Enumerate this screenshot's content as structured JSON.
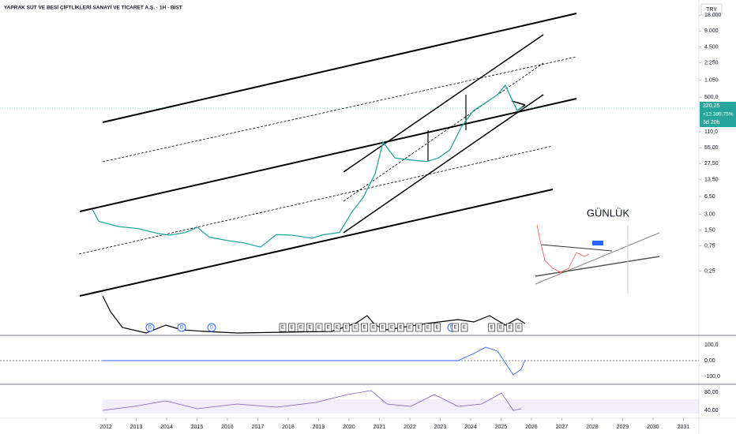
{
  "chart_data": {
    "type": "line",
    "title": "YAPRAK SÜT VE BESİ ÇİFTLİKLERİ SANAYİ VE TİCARET A.Ş. · 1H · BIST",
    "currency": "TRY",
    "annotation": "GÜNLÜK",
    "last_price_label": "320,25",
    "change_label": "+12.389,75%",
    "countdown_label": "3d 20h",
    "dividend_marker": "D",
    "earnings_marker": "E",
    "oscillator_ticks": [
      "100,0",
      "0,00",
      "-100,0"
    ],
    "rsi_ticks": [
      "80,00",
      "40,00"
    ],
    "log_scale": true,
    "series": [
      {
        "name": "YAPRAK",
        "color": "#26a69a",
        "x": [
          2011.56,
          2011.77,
          2012.42,
          2013.06,
          2013.71,
          2014.1,
          2014.62,
          2015.01,
          2015.4,
          2016.05,
          2016.57,
          2017.09,
          2017.61,
          2018.13,
          2018.78,
          2019.17,
          2019.69,
          2020.08,
          2020.47,
          2020.86,
          2021.12,
          2021.51,
          2022.03,
          2022.55,
          2022.94,
          2023.32,
          2023.71,
          2024.1,
          2024.49,
          2024.88,
          2025.14,
          2025.35,
          2025.53,
          2025.71
        ],
        "values": [
          3.7,
          2.2,
          1.75,
          1.6,
          1.29,
          1.2,
          1.35,
          1.7,
          1.1,
          0.94,
          0.85,
          0.71,
          1.23,
          1.2,
          1.05,
          1.23,
          1.35,
          3.2,
          6.3,
          17.6,
          70,
          35,
          32,
          30,
          35,
          50,
          140,
          280,
          390,
          555,
          840,
          465,
          280,
          330
        ]
      }
    ],
    "xlim": [
      2008.52,
      2031.51
    ],
    "xticks": [
      2012,
      2013,
      2014,
      2015,
      2016,
      2017,
      2018,
      2019,
      2020,
      2021,
      2022,
      2023,
      2024,
      2025,
      2026,
      2027,
      2028,
      2029,
      2030,
      2031
    ],
    "ylim": [
      0.015,
      35000
    ],
    "yticks": [
      {
        "value": 18000,
        "label": "18.000"
      },
      {
        "value": 9000,
        "label": "9.000"
      },
      {
        "value": 4500,
        "label": "4.500"
      },
      {
        "value": 2250,
        "label": "2.250"
      },
      {
        "value": 1050,
        "label": "1.050"
      },
      {
        "value": 500,
        "label": "500,0"
      },
      {
        "value": 110,
        "label": "110,0"
      },
      {
        "value": 55,
        "label": "55,00"
      },
      {
        "value": 27.5,
        "label": "27,50"
      },
      {
        "value": 13.5,
        "label": "13,50"
      },
      {
        "value": 6.5,
        "label": "6,50"
      },
      {
        "value": 3,
        "label": "3,00"
      },
      {
        "value": 1.5,
        "label": "1,50"
      },
      {
        "value": 0.75,
        "label": "0,75"
      },
      {
        "value": 0.25,
        "label": "0,25"
      }
    ]
  }
}
